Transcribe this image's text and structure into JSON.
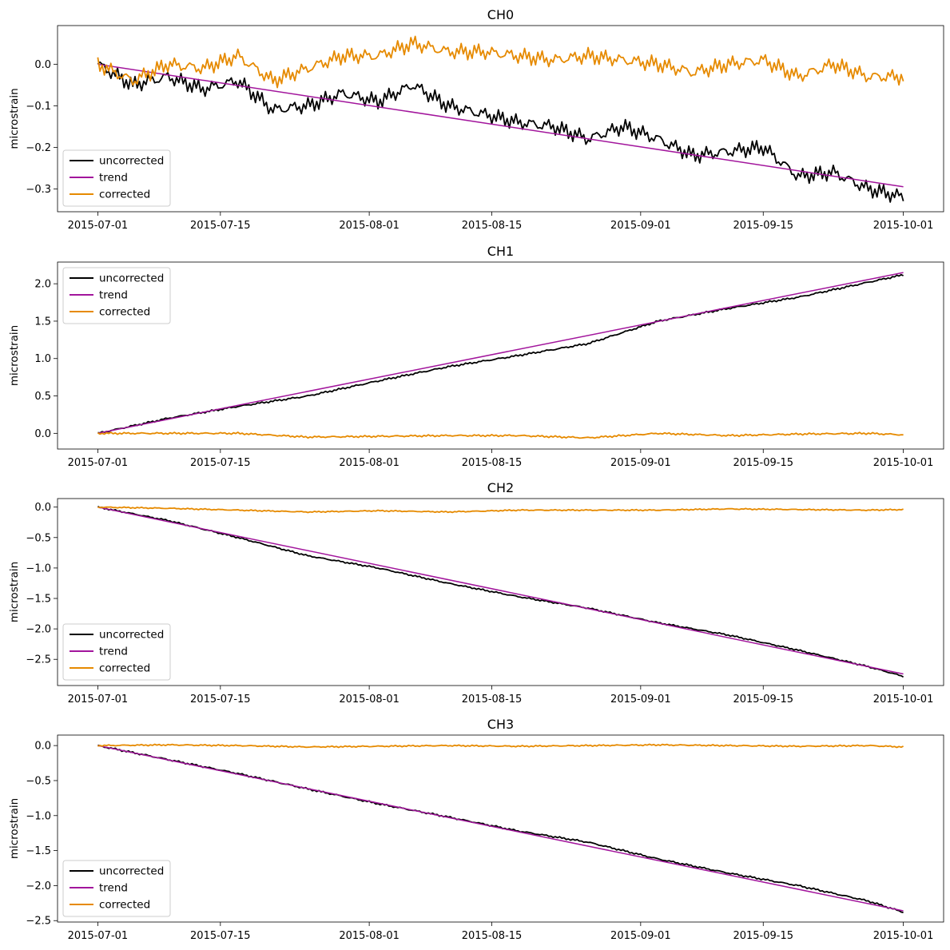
{
  "chart_data": [
    {
      "type": "line",
      "title": "CH0",
      "ylabel": "microstrain",
      "xlim": [
        "2015-07-01",
        "2015-10-01"
      ],
      "ylim": [
        -0.355,
        0.093
      ],
      "xticks": [
        "2015-07-01",
        "2015-07-15",
        "2015-08-01",
        "2015-08-15",
        "2015-09-01",
        "2015-09-15",
        "2015-10-01"
      ],
      "yticks": [
        0.0,
        -0.1,
        -0.2,
        -0.3
      ],
      "ytick_labels": [
        "0.0",
        "−0.1",
        "−0.2",
        "−0.3"
      ],
      "legend": "lower-left",
      "series": [
        {
          "name": "uncorrected",
          "color": "#000000",
          "x": [
            "2015-07-01",
            "2015-07-05",
            "2015-07-09",
            "2015-07-13",
            "2015-07-17",
            "2015-07-21",
            "2015-07-25",
            "2015-07-29",
            "2015-08-02",
            "2015-08-06",
            "2015-08-10",
            "2015-08-14",
            "2015-08-18",
            "2015-08-22",
            "2015-08-26",
            "2015-08-30",
            "2015-09-03",
            "2015-09-07",
            "2015-09-11",
            "2015-09-15",
            "2015-09-19",
            "2015-09-23",
            "2015-09-27",
            "2015-10-01"
          ],
          "y": [
            0.0,
            -0.05,
            -0.03,
            -0.06,
            -0.04,
            -0.11,
            -0.1,
            -0.07,
            -0.09,
            -0.05,
            -0.1,
            -0.12,
            -0.14,
            -0.15,
            -0.18,
            -0.15,
            -0.18,
            -0.22,
            -0.21,
            -0.2,
            -0.27,
            -0.26,
            -0.3,
            -0.32
          ],
          "noise": 0.015
        },
        {
          "name": "trend",
          "color": "#a2159c",
          "x": [
            "2015-07-01",
            "2015-10-01"
          ],
          "y": [
            0.0,
            -0.295
          ]
        },
        {
          "name": "corrected",
          "color": "#e68a00",
          "x": [
            "2015-07-01",
            "2015-07-05",
            "2015-07-09",
            "2015-07-13",
            "2015-07-17",
            "2015-07-21",
            "2015-07-25",
            "2015-07-29",
            "2015-08-02",
            "2015-08-06",
            "2015-08-10",
            "2015-08-14",
            "2015-08-18",
            "2015-08-22",
            "2015-08-26",
            "2015-08-30",
            "2015-09-03",
            "2015-09-07",
            "2015-09-11",
            "2015-09-15",
            "2015-09-19",
            "2015-09-23",
            "2015-09-27",
            "2015-10-01"
          ],
          "y": [
            0.0,
            -0.04,
            0.0,
            -0.01,
            0.02,
            -0.04,
            -0.01,
            0.02,
            0.02,
            0.05,
            0.03,
            0.03,
            0.02,
            0.01,
            0.02,
            0.01,
            0.0,
            -0.02,
            0.0,
            0.01,
            -0.03,
            0.0,
            -0.03,
            -0.03
          ],
          "noise": 0.015
        }
      ]
    },
    {
      "type": "line",
      "title": "CH1",
      "ylabel": "microstrain",
      "xlim": [
        "2015-07-01",
        "2015-10-01"
      ],
      "ylim": [
        -0.21,
        2.29
      ],
      "xticks": [
        "2015-07-01",
        "2015-07-15",
        "2015-08-01",
        "2015-08-15",
        "2015-09-01",
        "2015-09-15",
        "2015-10-01"
      ],
      "yticks": [
        0.0,
        0.5,
        1.0,
        1.5,
        2.0
      ],
      "ytick_labels": [
        "0.0",
        "0.5",
        "1.0",
        "1.5",
        "2.0"
      ],
      "legend": "upper-left",
      "series": [
        {
          "name": "uncorrected",
          "color": "#000000",
          "x": [
            "2015-07-01",
            "2015-07-09",
            "2015-07-17",
            "2015-07-25",
            "2015-08-02",
            "2015-08-10",
            "2015-08-18",
            "2015-08-26",
            "2015-09-03",
            "2015-09-11",
            "2015-09-19",
            "2015-09-27",
            "2015-10-01"
          ],
          "y": [
            0.0,
            0.2,
            0.36,
            0.5,
            0.7,
            0.89,
            1.04,
            1.2,
            1.5,
            1.67,
            1.82,
            2.02,
            2.12
          ],
          "noise": 0.01
        },
        {
          "name": "trend",
          "color": "#a2159c",
          "x": [
            "2015-07-01",
            "2015-10-01"
          ],
          "y": [
            0.0,
            2.15
          ]
        },
        {
          "name": "corrected",
          "color": "#e68a00",
          "x": [
            "2015-07-01",
            "2015-07-09",
            "2015-07-17",
            "2015-07-25",
            "2015-08-02",
            "2015-08-10",
            "2015-08-18",
            "2015-08-26",
            "2015-09-03",
            "2015-09-11",
            "2015-09-19",
            "2015-09-27",
            "2015-10-01"
          ],
          "y": [
            0.0,
            0.0,
            0.0,
            -0.05,
            -0.04,
            -0.03,
            -0.03,
            -0.06,
            0.0,
            -0.03,
            -0.01,
            0.0,
            -0.02
          ],
          "noise": 0.01
        }
      ]
    },
    {
      "type": "line",
      "title": "CH2",
      "ylabel": "microstrain",
      "xlim": [
        "2015-07-01",
        "2015-10-01"
      ],
      "ylim": [
        -2.93,
        0.14
      ],
      "xticks": [
        "2015-07-01",
        "2015-07-15",
        "2015-08-01",
        "2015-08-15",
        "2015-09-01",
        "2015-09-15",
        "2015-10-01"
      ],
      "yticks": [
        0.0,
        -0.5,
        -1.0,
        -1.5,
        -2.0,
        -2.5
      ],
      "ytick_labels": [
        "0.0",
        "−0.5",
        "−1.0",
        "−1.5",
        "−2.0",
        "−2.5"
      ],
      "legend": "lower-left",
      "series": [
        {
          "name": "uncorrected",
          "color": "#000000",
          "x": [
            "2015-07-01",
            "2015-07-09",
            "2015-07-17",
            "2015-07-25",
            "2015-08-02",
            "2015-08-10",
            "2015-08-18",
            "2015-08-26",
            "2015-09-03",
            "2015-09-11",
            "2015-09-19",
            "2015-09-27",
            "2015-10-01"
          ],
          "y": [
            0.0,
            -0.22,
            -0.5,
            -0.8,
            -1.0,
            -1.25,
            -1.47,
            -1.66,
            -1.9,
            -2.1,
            -2.35,
            -2.62,
            -2.78
          ],
          "noise": 0.01
        },
        {
          "name": "trend",
          "color": "#a2159c",
          "x": [
            "2015-07-01",
            "2015-10-01"
          ],
          "y": [
            0.0,
            -2.74
          ]
        },
        {
          "name": "corrected",
          "color": "#e68a00",
          "x": [
            "2015-07-01",
            "2015-07-09",
            "2015-07-17",
            "2015-07-25",
            "2015-08-02",
            "2015-08-10",
            "2015-08-18",
            "2015-08-26",
            "2015-09-03",
            "2015-09-11",
            "2015-09-19",
            "2015-09-27",
            "2015-10-01"
          ],
          "y": [
            0.0,
            -0.02,
            -0.05,
            -0.08,
            -0.06,
            -0.08,
            -0.05,
            -0.05,
            -0.05,
            -0.03,
            -0.04,
            -0.05,
            -0.04
          ],
          "noise": 0.008
        }
      ]
    },
    {
      "type": "line",
      "title": "CH3",
      "ylabel": "microstrain",
      "xlim": [
        "2015-07-01",
        "2015-10-01"
      ],
      "ylim": [
        -2.52,
        0.15
      ],
      "xticks": [
        "2015-07-01",
        "2015-07-15",
        "2015-08-01",
        "2015-08-15",
        "2015-09-01",
        "2015-09-15",
        "2015-10-01"
      ],
      "yticks": [
        0.0,
        -0.5,
        -1.0,
        -1.5,
        -2.0,
        -2.5
      ],
      "ytick_labels": [
        "0.0",
        "−0.5",
        "−1.0",
        "−1.5",
        "−2.0",
        "−2.5"
      ],
      "legend": "lower-left",
      "series": [
        {
          "name": "uncorrected",
          "color": "#000000",
          "x": [
            "2015-07-01",
            "2015-07-09",
            "2015-07-17",
            "2015-07-25",
            "2015-08-02",
            "2015-08-10",
            "2015-08-18",
            "2015-08-26",
            "2015-09-03",
            "2015-09-11",
            "2015-09-19",
            "2015-09-27",
            "2015-10-01"
          ],
          "y": [
            0.0,
            -0.2,
            -0.4,
            -0.62,
            -0.83,
            -1.02,
            -1.22,
            -1.38,
            -1.62,
            -1.82,
            -2.0,
            -2.22,
            -2.38
          ],
          "noise": 0.01
        },
        {
          "name": "trend",
          "color": "#a2159c",
          "x": [
            "2015-07-01",
            "2015-10-01"
          ],
          "y": [
            0.0,
            -2.36
          ]
        },
        {
          "name": "corrected",
          "color": "#e68a00",
          "x": [
            "2015-07-01",
            "2015-07-09",
            "2015-07-17",
            "2015-07-25",
            "2015-08-02",
            "2015-08-10",
            "2015-08-18",
            "2015-08-26",
            "2015-09-03",
            "2015-09-11",
            "2015-09-19",
            "2015-09-27",
            "2015-10-01"
          ],
          "y": [
            0.0,
            0.01,
            0.0,
            -0.02,
            -0.01,
            0.0,
            -0.01,
            0.0,
            0.01,
            0.0,
            -0.01,
            0.0,
            -0.02
          ],
          "noise": 0.008
        }
      ]
    }
  ]
}
